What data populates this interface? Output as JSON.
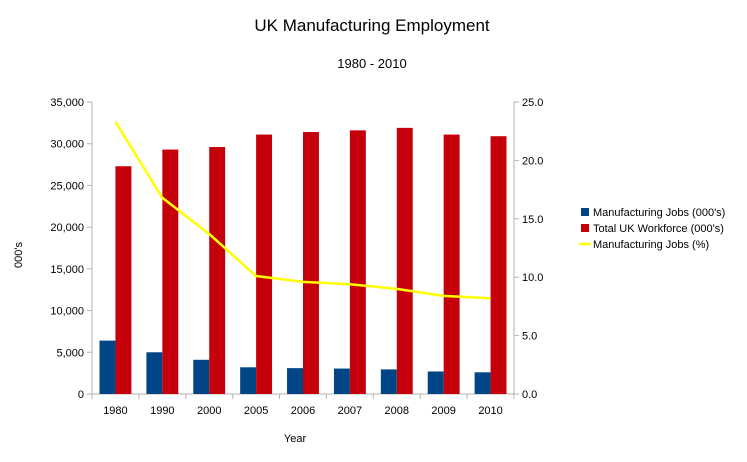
{
  "chart_data": {
    "type": "bar",
    "title": "UK Manufacturing Employment",
    "subtitle": "1980 - 2010",
    "xlabel": "Year",
    "ylabel": "000's",
    "categories": [
      "1980",
      "1990",
      "2000",
      "2005",
      "2006",
      "2007",
      "2008",
      "2009",
      "2010"
    ],
    "ylim": [
      0,
      35000
    ],
    "y_ticks": [
      0,
      5000,
      10000,
      15000,
      20000,
      25000,
      30000,
      35000
    ],
    "y_tick_labels": [
      "0",
      "5,000",
      "10,000",
      "15,000",
      "20,000",
      "25,000",
      "30,000",
      "35,000"
    ],
    "y2lim": [
      0,
      25
    ],
    "y2_ticks": [
      0,
      5,
      10,
      15,
      20,
      25
    ],
    "y2_tick_labels": [
      "0.0",
      "5.0",
      "10.0",
      "15.0",
      "20.0",
      "25.0"
    ],
    "grid": false,
    "legend_position": "right",
    "series": [
      {
        "name": "Manufacturing Jobs (000's)",
        "type": "bar",
        "axis": "left",
        "color": "#004586",
        "values": [
          6400,
          5000,
          4100,
          3200,
          3100,
          3050,
          2950,
          2700,
          2600
        ]
      },
      {
        "name": "Total UK Workforce (000's)",
        "type": "bar",
        "axis": "left",
        "color": "#c5000b",
        "values": [
          27300,
          29300,
          29600,
          31100,
          31400,
          31600,
          31900,
          31100,
          30900
        ]
      },
      {
        "name": "Manufacturing Jobs (%)",
        "type": "line",
        "axis": "right",
        "color": "#ffff00",
        "values": [
          23.3,
          16.8,
          13.7,
          10.1,
          9.6,
          9.4,
          9.0,
          8.4,
          8.2
        ]
      }
    ]
  }
}
